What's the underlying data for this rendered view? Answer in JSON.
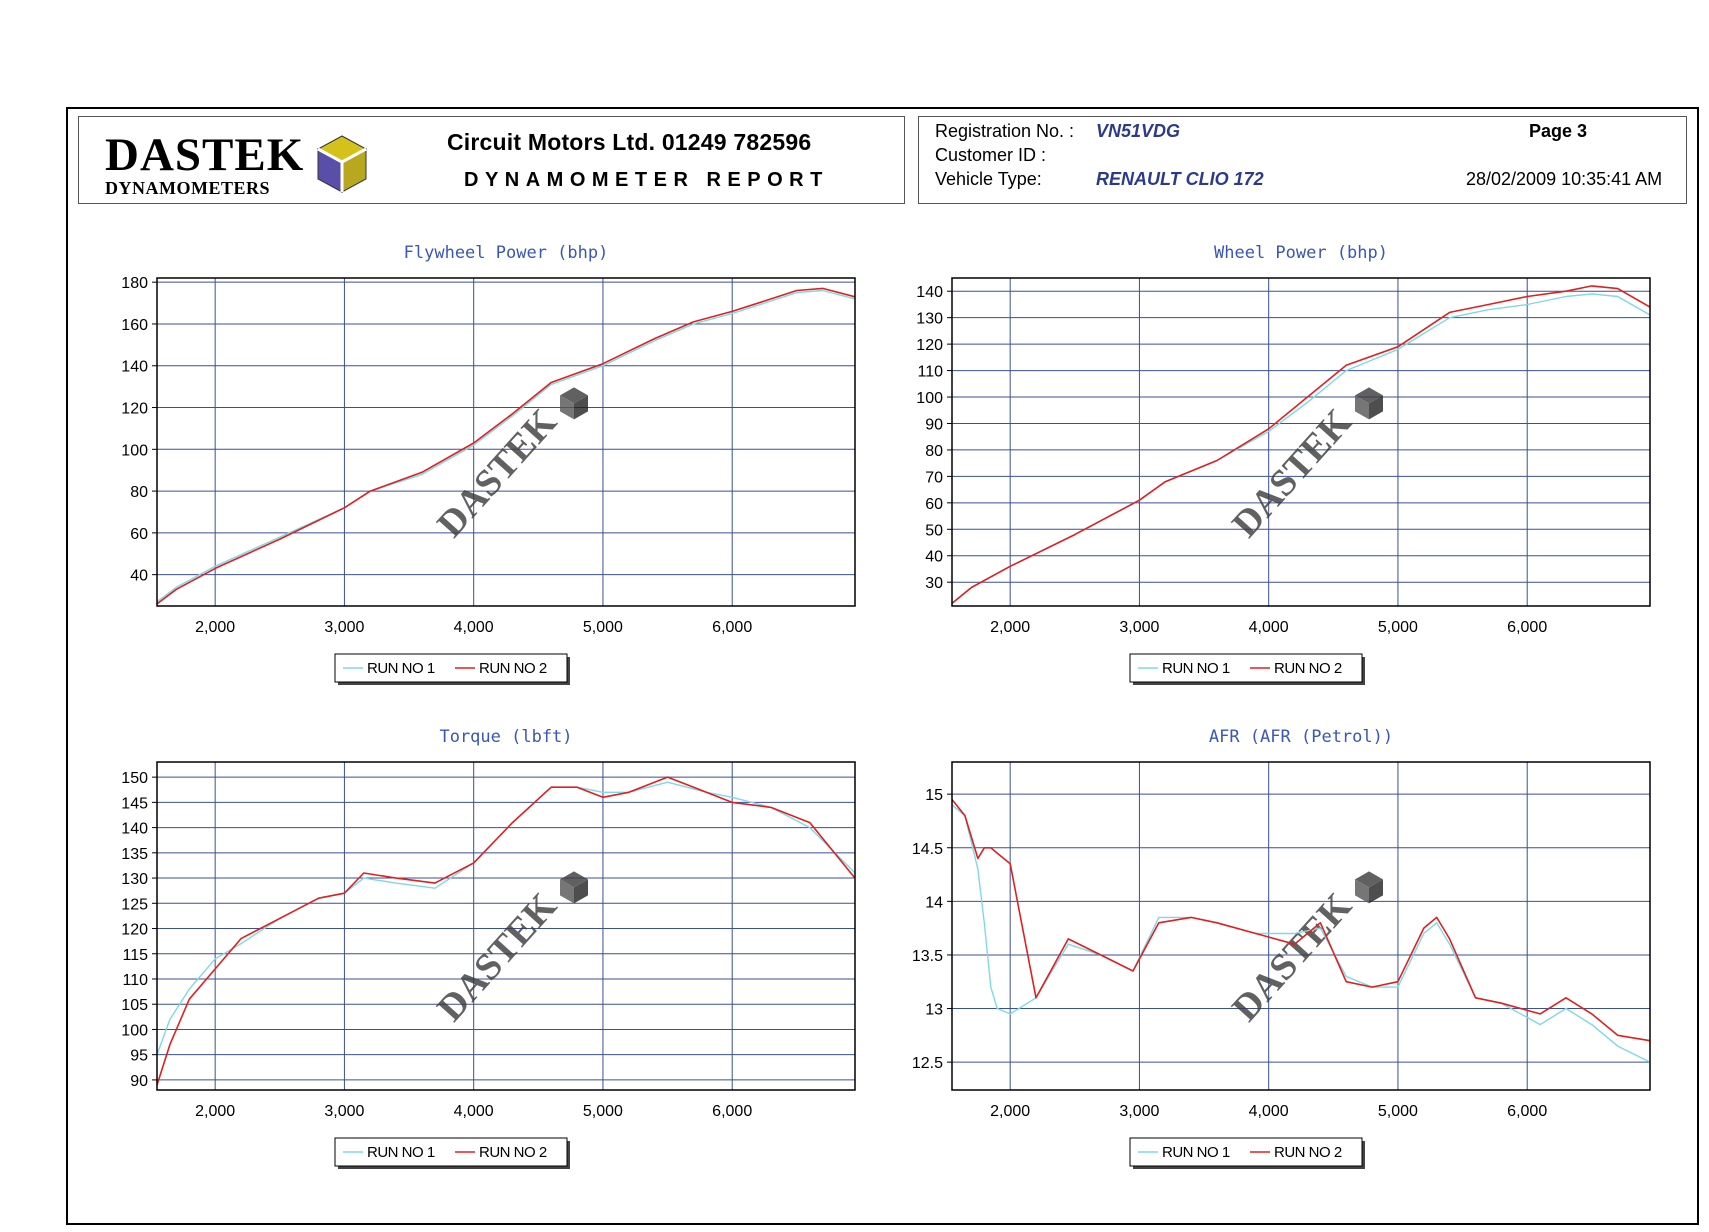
{
  "header": {
    "logo_word": "DASTEK",
    "logo_sub": "DYNAMOMETERS",
    "company": "Circuit Motors Ltd. 01249 782596",
    "report_title": "DYNAMOMETER REPORT",
    "registration_label": "Registration No. :",
    "registration_value": "VN51VDG",
    "customer_label": "Customer ID :",
    "vehicle_label": "Vehicle Type:",
    "vehicle_value": "RENAULT CLIO 172",
    "page": "Page 3",
    "datetime": "28/02/2009 10:35:41 AM"
  },
  "watermark": "DASTEK",
  "colors": {
    "run1": "#7fd8e8",
    "run2": "#e02020",
    "grid": "#3a4f9a",
    "title": "#3a56b8"
  },
  "chart_data": [
    {
      "type": "line",
      "title": "Flywheel Power (bhp)",
      "xlim": [
        1550,
        6950
      ],
      "ylim": [
        25,
        182
      ],
      "xticks": [
        2000,
        3000,
        4000,
        5000,
        6000
      ],
      "xtick_labels": [
        "2,000",
        "3,000",
        "4,000",
        "5,000",
        "6,000"
      ],
      "yticks": [
        40,
        60,
        80,
        100,
        120,
        140,
        160,
        180
      ],
      "ytick_labels": [
        "40",
        "60",
        "80",
        "100",
        "120",
        "140",
        "160",
        "180"
      ],
      "grid": true,
      "legend": "bottom-center",
      "series": [
        {
          "name": "RUN NO 1",
          "x": [
            1550,
            1700,
            2000,
            2500,
            3000,
            3200,
            3600,
            4000,
            4300,
            4600,
            5000,
            5400,
            5700,
            6000,
            6300,
            6500,
            6700,
            6950
          ],
          "y": [
            27,
            34,
            44,
            58,
            72,
            80,
            88,
            102,
            116,
            131,
            140,
            152,
            160,
            165,
            171,
            175,
            176,
            172
          ]
        },
        {
          "name": "RUN NO 2",
          "x": [
            1550,
            1700,
            2000,
            2500,
            3000,
            3200,
            3600,
            4000,
            4300,
            4600,
            5000,
            5400,
            5700,
            6000,
            6300,
            6500,
            6700,
            6950
          ],
          "y": [
            26,
            33,
            43,
            57,
            72,
            80,
            89,
            103,
            117,
            132,
            141,
            153,
            161,
            166,
            172,
            176,
            177,
            173
          ]
        }
      ]
    },
    {
      "type": "line",
      "title": "Wheel Power (bhp)",
      "xlim": [
        1550,
        6950
      ],
      "ylim": [
        21,
        145
      ],
      "xticks": [
        2000,
        3000,
        4000,
        5000,
        6000
      ],
      "xtick_labels": [
        "2,000",
        "3,000",
        "4,000",
        "5,000",
        "6,000"
      ],
      "yticks": [
        30,
        40,
        50,
        60,
        70,
        80,
        90,
        100,
        110,
        120,
        130,
        140
      ],
      "ytick_labels": [
        "30",
        "40",
        "50",
        "60",
        "70",
        "80",
        "90",
        "100",
        "110",
        "120",
        "130",
        "140"
      ],
      "grid": true,
      "legend": "bottom-center",
      "series": [
        {
          "name": "RUN NO 1",
          "x": [
            1550,
            1700,
            2000,
            2500,
            3000,
            3200,
            3600,
            4000,
            4300,
            4600,
            5000,
            5400,
            5700,
            6000,
            6300,
            6500,
            6700,
            6950
          ],
          "y": [
            22,
            28,
            36,
            48,
            61,
            68,
            76,
            87,
            98,
            110,
            118,
            130,
            133,
            135,
            138,
            139,
            138,
            131
          ]
        },
        {
          "name": "RUN NO 2",
          "x": [
            1550,
            1700,
            2000,
            2500,
            3000,
            3200,
            3600,
            4000,
            4300,
            4600,
            5000,
            5400,
            5700,
            6000,
            6300,
            6500,
            6700,
            6950
          ],
          "y": [
            22,
            28,
            36,
            48,
            61,
            68,
            76,
            88,
            100,
            112,
            119,
            132,
            135,
            138,
            140,
            142,
            141,
            134
          ]
        }
      ]
    },
    {
      "type": "line",
      "title": "Torque (lbft)",
      "xlim": [
        1550,
        6950
      ],
      "ylim": [
        88,
        153
      ],
      "xticks": [
        2000,
        3000,
        4000,
        5000,
        6000
      ],
      "xtick_labels": [
        "2,000",
        "3,000",
        "4,000",
        "5,000",
        "6,000"
      ],
      "yticks": [
        90,
        95,
        100,
        105,
        110,
        115,
        120,
        125,
        130,
        135,
        140,
        145,
        150
      ],
      "ytick_labels": [
        "90",
        "95",
        "100",
        "105",
        "110",
        "115",
        "120",
        "125",
        "130",
        "135",
        "140",
        "145",
        "150"
      ],
      "grid": true,
      "legend": "bottom-center",
      "series": [
        {
          "name": "RUN NO 1",
          "x": [
            1550,
            1650,
            1800,
            2000,
            2200,
            2500,
            2800,
            3000,
            3150,
            3400,
            3700,
            4000,
            4300,
            4600,
            4800,
            5000,
            5200,
            5500,
            5800,
            6000,
            6300,
            6600,
            6950
          ],
          "y": [
            95,
            102,
            108,
            114,
            117,
            122,
            126,
            127,
            130,
            129,
            128,
            133,
            141,
            148,
            148,
            147,
            147,
            149,
            147,
            146,
            144,
            140,
            131
          ]
        },
        {
          "name": "RUN NO 2",
          "x": [
            1550,
            1650,
            1800,
            2000,
            2200,
            2500,
            2800,
            3000,
            3150,
            3400,
            3700,
            4000,
            4300,
            4600,
            4800,
            5000,
            5200,
            5500,
            5800,
            6000,
            6300,
            6600,
            6950
          ],
          "y": [
            89,
            97,
            106,
            112,
            118,
            122,
            126,
            127,
            131,
            130,
            129,
            133,
            141,
            148,
            148,
            146,
            147,
            150,
            147,
            145,
            144,
            141,
            130
          ]
        }
      ]
    },
    {
      "type": "line",
      "title": "AFR (AFR (Petrol))",
      "xlim": [
        1550,
        6950
      ],
      "ylim": [
        12.24,
        15.3
      ],
      "xticks": [
        2000,
        3000,
        4000,
        5000,
        6000
      ],
      "xtick_labels": [
        "2,000",
        "3,000",
        "4,000",
        "5,000",
        "6,000"
      ],
      "yticks": [
        12.5,
        13,
        13.5,
        14,
        14.5,
        15
      ],
      "ytick_labels": [
        "12.5",
        "13",
        "13.5",
        "14",
        "14.5",
        "15"
      ],
      "grid": true,
      "legend": "bottom-center",
      "series": [
        {
          "name": "RUN NO 1",
          "x": [
            1550,
            1650,
            1750,
            1800,
            1850,
            1900,
            2000,
            2200,
            2450,
            2700,
            2950,
            3150,
            3400,
            3600,
            3900,
            4200,
            4400,
            4600,
            4800,
            5000,
            5200,
            5300,
            5400,
            5600,
            5800,
            6100,
            6300,
            6500,
            6700,
            6950
          ],
          "y": [
            14.9,
            14.8,
            14.3,
            13.8,
            13.2,
            13.0,
            12.95,
            13.1,
            13.6,
            13.5,
            13.35,
            13.85,
            13.85,
            13.8,
            13.7,
            13.7,
            13.75,
            13.3,
            13.2,
            13.2,
            13.7,
            13.8,
            13.6,
            13.1,
            13.05,
            12.85,
            13.0,
            12.85,
            12.65,
            12.5
          ]
        },
        {
          "name": "RUN NO 2",
          "x": [
            1550,
            1650,
            1750,
            1800,
            1850,
            1900,
            2000,
            2200,
            2450,
            2700,
            2950,
            3150,
            3400,
            3600,
            3900,
            4200,
            4400,
            4600,
            4800,
            5000,
            5200,
            5300,
            5400,
            5600,
            5800,
            6100,
            6300,
            6500,
            6700,
            6950
          ],
          "y": [
            14.95,
            14.8,
            14.4,
            14.5,
            14.5,
            14.45,
            14.35,
            13.1,
            13.65,
            13.5,
            13.35,
            13.8,
            13.85,
            13.8,
            13.7,
            13.6,
            13.8,
            13.25,
            13.2,
            13.25,
            13.75,
            13.85,
            13.65,
            13.1,
            13.05,
            12.95,
            13.1,
            12.95,
            12.75,
            12.7
          ]
        }
      ]
    }
  ]
}
